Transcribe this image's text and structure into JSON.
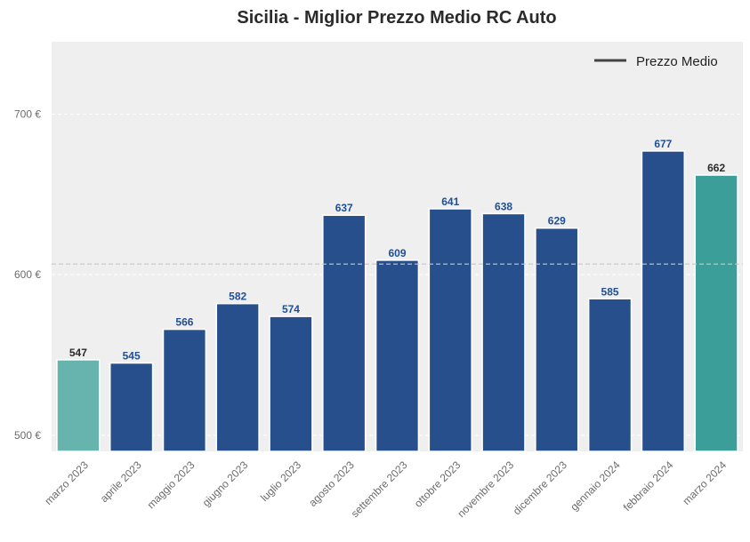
{
  "chart_data": {
    "type": "bar",
    "title": "Sicilia - Miglior Prezzo Medio RC Auto",
    "xlabel": "",
    "ylabel": "",
    "categories": [
      "marzo 2023",
      "aprile 2023",
      "maggio 2023",
      "giugno 2023",
      "luglio 2023",
      "agosto 2023",
      "settembre 2023",
      "ottobre 2023",
      "novembre 2023",
      "dicembre 2023",
      "gennaio 2024",
      "febbraio 2024",
      "marzo 2024"
    ],
    "values": [
      547,
      545,
      566,
      582,
      574,
      637,
      609,
      641,
      638,
      629,
      585,
      677,
      662
    ],
    "data_labels": [
      "547",
      "545",
      "566",
      "582",
      "574",
      "637",
      "609",
      "641",
      "638",
      "629",
      "585",
      "677",
      "662"
    ],
    "ylim": [
      490,
      745
    ],
    "yticks": [
      500,
      600,
      700
    ],
    "ytick_labels": [
      "500 €",
      "600 €",
      "700 €"
    ],
    "average_line": {
      "name": "Prezzo Medio",
      "value": 606.6
    },
    "legend": {
      "label": "Prezzo Medio",
      "position": "top-right"
    },
    "grid": true
  },
  "colors": {
    "bar_default": "#264f8c",
    "bar_first": "#67b3ad",
    "bar_last": "#3b9e98",
    "label_default": "#1f4f95",
    "label_highlight": "#2b2b2b",
    "plot_bg": "#efefef",
    "grid": "#ffffff",
    "average_line": "#c8c8c8",
    "legend_line": "#444444"
  }
}
